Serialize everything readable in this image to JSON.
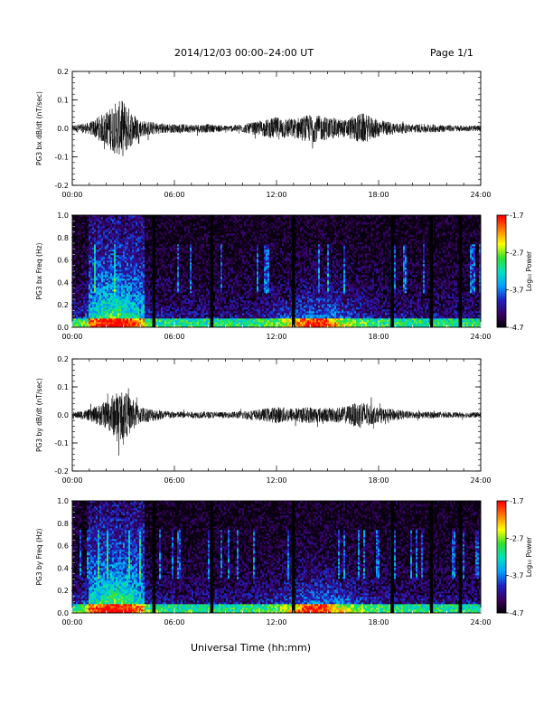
{
  "title": "2014/12/03  00:00–24:00 UT",
  "page_label": "Page 1/1",
  "x_axis_label": "Universal Time (hh:mm)",
  "x_ticks": [
    "00:00",
    "06:00",
    "12:00",
    "18:00",
    "24:00"
  ],
  "colorbar": {
    "label": "Log₁₀ Power",
    "ticks": [
      "-1.7",
      "-2.7",
      "-3.7",
      "-4.7"
    ],
    "range": [
      -4.7,
      -1.7
    ],
    "colormap": [
      "#000000",
      "#3a0060",
      "#2020c0",
      "#00a0ff",
      "#00e0c0",
      "#30e030",
      "#ffff00",
      "#ff8000",
      "#ff0000"
    ]
  },
  "chart_data": [
    {
      "type": "line",
      "ylabel": "PG3 bx dB/dt (nT/sec)",
      "xlim": [
        0,
        24
      ],
      "ylim": [
        -0.2,
        0.2
      ],
      "y_ticks": [
        "0.2",
        "0.1",
        "0.0",
        "-0.1",
        "-0.2"
      ],
      "series": [
        {
          "x": [
            0,
            1,
            2,
            2.5,
            3,
            3.5,
            4,
            5,
            6,
            7,
            8,
            9,
            10,
            11,
            12,
            13,
            14,
            15,
            16,
            17,
            18,
            19,
            20,
            21,
            22,
            23,
            24
          ],
          "envelope": [
            0.012,
            0.02,
            0.06,
            0.09,
            0.1,
            0.06,
            0.03,
            0.02,
            0.015,
            0.015,
            0.015,
            0.01,
            0.015,
            0.025,
            0.04,
            0.035,
            0.05,
            0.04,
            0.03,
            0.055,
            0.03,
            0.02,
            0.015,
            0.015,
            0.012,
            0.01,
            0.01
          ]
        }
      ]
    },
    {
      "type": "heatmap",
      "ylabel": "PG3 bx Freq (Hz)",
      "xlim": [
        0,
        24
      ],
      "ylim": [
        0,
        1
      ],
      "y_ticks": [
        "1.0",
        "0.8",
        "0.6",
        "0.4",
        "0.2",
        "0.0"
      ],
      "value_range": [
        -4.7,
        -1.7
      ],
      "data_gaps_hours": [
        4.8,
        8.2,
        13.0,
        18.8,
        21.1,
        22.8
      ]
    },
    {
      "type": "line",
      "ylabel": "PG3 by dB/dt (nT/sec)",
      "xlim": [
        0,
        24
      ],
      "ylim": [
        -0.2,
        0.2
      ],
      "y_ticks": [
        "0.2",
        "0.1",
        "0.0",
        "-0.1",
        "-0.2"
      ],
      "series": [
        {
          "x": [
            0,
            1,
            2,
            2.5,
            3,
            3.5,
            4,
            5,
            6,
            7,
            8,
            9,
            10,
            11,
            12,
            13,
            14,
            15,
            16,
            17,
            18,
            19,
            20,
            21,
            22,
            23,
            24
          ],
          "envelope": [
            0.01,
            0.02,
            0.05,
            0.08,
            0.09,
            0.06,
            0.03,
            0.02,
            0.012,
            0.012,
            0.012,
            0.01,
            0.015,
            0.02,
            0.03,
            0.025,
            0.03,
            0.025,
            0.03,
            0.05,
            0.025,
            0.02,
            0.012,
            0.012,
            0.01,
            0.01,
            0.01
          ]
        }
      ]
    },
    {
      "type": "heatmap",
      "ylabel": "PG3 by Freq (Hz)",
      "xlim": [
        0,
        24
      ],
      "ylim": [
        0,
        1
      ],
      "y_ticks": [
        "1.0",
        "0.8",
        "0.6",
        "0.4",
        "0.2",
        "0.0"
      ],
      "value_range": [
        -4.7,
        -1.7
      ],
      "data_gaps_hours": [
        4.8,
        8.2,
        13.0,
        18.8,
        21.1,
        22.8
      ]
    }
  ]
}
